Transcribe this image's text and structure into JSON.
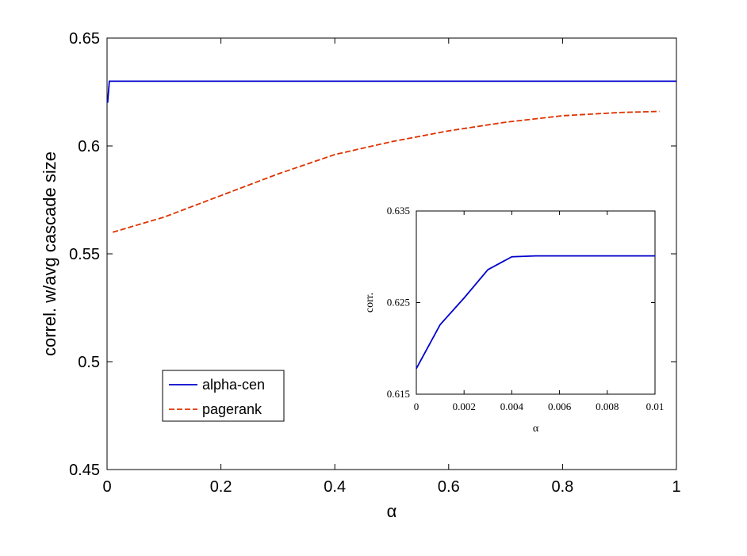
{
  "chart_data": [
    {
      "type": "line",
      "xlabel": "α",
      "ylabel": "correl. w/avg cascade size",
      "xlim": [
        0,
        1
      ],
      "ylim": [
        0.45,
        0.65
      ],
      "xticks": [
        "0",
        "0.2",
        "0.4",
        "0.6",
        "0.8",
        "1"
      ],
      "yticks": [
        "0.45",
        "0.5",
        "0.55",
        "0.6",
        "0.65"
      ],
      "xtick_values": [
        0,
        0.2,
        0.4,
        0.6,
        0.8,
        1
      ],
      "ytick_values": [
        0.45,
        0.5,
        0.55,
        0.6,
        0.65
      ],
      "legend_position": "lower-left",
      "series": [
        {
          "name": "alpha-cen",
          "color": "#0000cc",
          "style": "solid",
          "x": [
            0.001,
            0.004,
            0.01,
            0.1,
            0.2,
            0.3,
            0.4,
            0.5,
            0.6,
            0.7,
            0.8,
            0.9,
            1.0
          ],
          "y": [
            0.62,
            0.63,
            0.63,
            0.63,
            0.63,
            0.63,
            0.63,
            0.63,
            0.63,
            0.63,
            0.63,
            0.63,
            0.63
          ]
        },
        {
          "name": "pagerank",
          "color": "#dd3300",
          "style": "dashed",
          "x": [
            0.01,
            0.1,
            0.2,
            0.3,
            0.4,
            0.5,
            0.6,
            0.7,
            0.8,
            0.9,
            0.97
          ],
          "y": [
            0.56,
            0.567,
            0.577,
            0.587,
            0.596,
            0.602,
            0.607,
            0.611,
            0.614,
            0.6155,
            0.616
          ]
        }
      ]
    },
    {
      "type": "line",
      "xlabel": "α",
      "ylabel": "corr.",
      "xlim": [
        0,
        0.01
      ],
      "ylim": [
        0.615,
        0.635
      ],
      "xticks": [
        "0",
        "0.002",
        "0.004",
        "0.006",
        "0.008",
        "0.01"
      ],
      "yticks": [
        "0.615",
        "0.625",
        "0.635"
      ],
      "xtick_values": [
        0,
        0.002,
        0.004,
        0.006,
        0.008,
        0.01
      ],
      "ytick_values": [
        0.615,
        0.625,
        0.635
      ],
      "series": [
        {
          "color": "#0000cc",
          "style": "solid",
          "x": [
            0,
            0.001,
            0.002,
            0.003,
            0.004,
            0.005,
            0.006,
            0.007,
            0.008,
            0.009,
            0.01
          ],
          "y": [
            0.6178,
            0.6226,
            0.6255,
            0.6286,
            0.63,
            0.6301,
            0.6301,
            0.6301,
            0.6301,
            0.6301,
            0.6301
          ]
        }
      ]
    }
  ]
}
